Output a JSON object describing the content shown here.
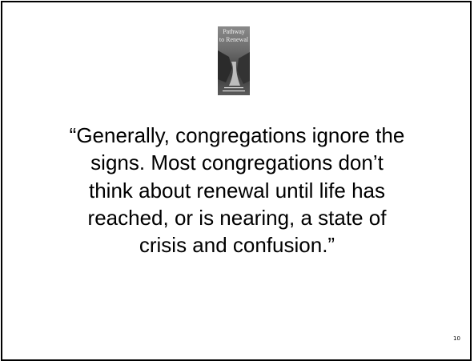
{
  "cover": {
    "title_lines": [
      "Pathway",
      "to Renewal"
    ]
  },
  "quote": {
    "lines": [
      "“Generally, congregations ignore the",
      "signs. Most congregations don’t",
      "think about renewal until life has",
      "reached, or is nearing, a state of",
      "crisis and confusion.”"
    ]
  },
  "page_number": "10"
}
